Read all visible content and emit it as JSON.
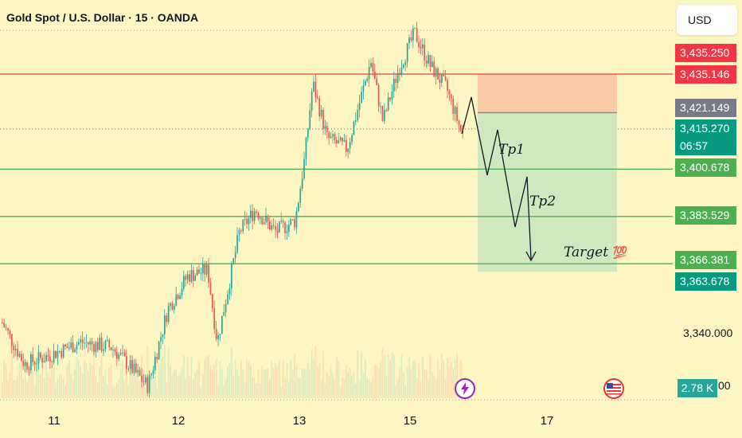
{
  "header": {
    "title": "Gold Spot / U.S. Dollar · 15 · OANDA"
  },
  "currency_button": {
    "label": "USD"
  },
  "colors": {
    "background": "#fdf6c3",
    "bull": "#26a69a",
    "bear": "#ef5350",
    "stop_zone": "#f9cba7",
    "target_zone": "#cfe8c0",
    "red_line": "#e0424a",
    "green_line": "#4caf50"
  },
  "price_labels": [
    {
      "text": "3,435.250",
      "color": "#f23645"
    },
    {
      "text": "3,435.146",
      "color": "#f23645"
    },
    {
      "text": "3,421.149",
      "color": "#787b86"
    },
    {
      "text": "3,415.270",
      "color": "#089981"
    },
    {
      "text": "06:57",
      "color": "#089981"
    },
    {
      "text": "3,400.678",
      "color": "#4caf50"
    },
    {
      "text": "3,383.529",
      "color": "#4caf50"
    },
    {
      "text": "3,366.381",
      "color": "#4caf50"
    },
    {
      "text": "3,363.678",
      "color": "#089981"
    }
  ],
  "axis_ticks": [
    "3,340.000"
  ],
  "volume_badge": "2.78 K",
  "annotations": {
    "tp1": "Tp1",
    "tp2": "Tp2",
    "target": "Target",
    "target_emoji": "💯"
  },
  "icons": {
    "lightning": "lightning-icon",
    "us_flag": "us-flag-icon"
  },
  "chart_data": {
    "type": "candlestick",
    "title": "Gold Spot / U.S. Dollar · 15 · OANDA",
    "x_ticks": [
      "11",
      "12",
      "13",
      "15",
      "17"
    ],
    "y_ticks": [
      "3,340.000"
    ],
    "horizontal_levels": [
      {
        "price": 3435.146,
        "color": "red"
      },
      {
        "price": 3400.678,
        "color": "green"
      },
      {
        "price": 3383.529,
        "color": "green"
      },
      {
        "price": 3366.381,
        "color": "green"
      }
    ],
    "current_price": 3415.27,
    "countdown": "06:57",
    "position_tool": {
      "entry": 3421.149,
      "stop": 3435.146,
      "target": 3366.381
    },
    "projection_labels": [
      "Tp1",
      "Tp2",
      "Target"
    ],
    "volume_last": "2.78 K"
  }
}
